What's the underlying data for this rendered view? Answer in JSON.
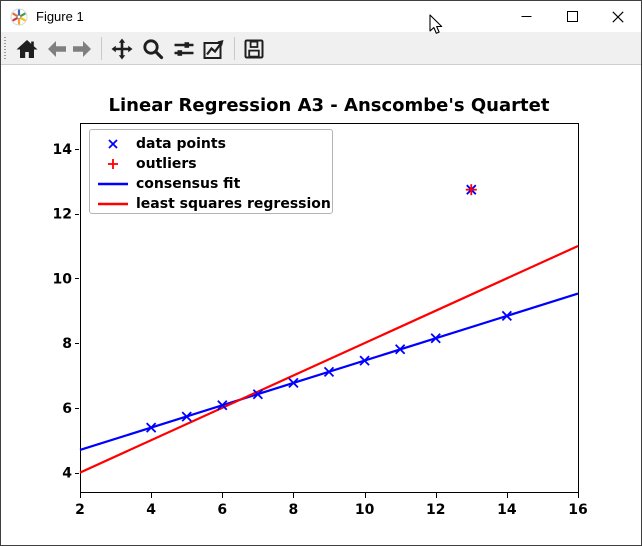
{
  "window": {
    "title": "Figure 1",
    "controls": [
      {
        "id": "minimize",
        "icon": "minimize-icon"
      },
      {
        "id": "maximize",
        "icon": "maximize-icon"
      },
      {
        "id": "close",
        "icon": "close-icon"
      }
    ]
  },
  "toolbar": {
    "items": [
      {
        "id": "home",
        "icon": "home-icon",
        "disabled": false
      },
      {
        "id": "back",
        "icon": "arrow-left-icon",
        "disabled": true
      },
      {
        "id": "forward",
        "icon": "arrow-right-icon",
        "disabled": true
      },
      {
        "id": "pan",
        "icon": "move-arrows-icon",
        "disabled": false
      },
      {
        "id": "zoom",
        "icon": "magnifier-icon",
        "disabled": false
      },
      {
        "id": "subplots",
        "icon": "sliders-icon",
        "disabled": false
      },
      {
        "id": "customize",
        "icon": "chart-arrow-icon",
        "disabled": false
      },
      {
        "id": "save",
        "icon": "floppy-disk-icon",
        "disabled": false
      }
    ]
  },
  "chart_data": {
    "type": "scatter+line",
    "title": "Linear Regression A3 - Anscombe's Quartet",
    "xlabel": "",
    "ylabel": "",
    "xlim": [
      2,
      16
    ],
    "ylim": [
      3.4,
      14.8
    ],
    "xticks": [
      2,
      4,
      6,
      8,
      10,
      12,
      14,
      16
    ],
    "yticks": [
      4,
      6,
      8,
      10,
      12,
      14
    ],
    "grid": false,
    "legend_position": "upper left",
    "series": [
      {
        "name": "data points",
        "kind": "scatter",
        "marker": "x",
        "color": "#0000ff",
        "points": [
          [
            4,
            5.39
          ],
          [
            5,
            5.73
          ],
          [
            6,
            6.08
          ],
          [
            7,
            6.42
          ],
          [
            8,
            6.77
          ],
          [
            9,
            7.11
          ],
          [
            10,
            7.46
          ],
          [
            11,
            7.81
          ],
          [
            12,
            8.15
          ],
          [
            13,
            12.74
          ],
          [
            14,
            8.84
          ]
        ]
      },
      {
        "name": "outliers",
        "kind": "scatter",
        "marker": "+",
        "color": "#ff0000",
        "points": [
          [
            13,
            12.74
          ]
        ]
      },
      {
        "name": "consensus fit",
        "kind": "line",
        "color": "#0000ff",
        "points": [
          [
            2,
            4.7
          ],
          [
            16,
            9.53
          ]
        ]
      },
      {
        "name": "least squares regression",
        "kind": "line",
        "color": "#ff0000",
        "points": [
          [
            2,
            4.0
          ],
          [
            16,
            11.0
          ]
        ]
      }
    ]
  }
}
